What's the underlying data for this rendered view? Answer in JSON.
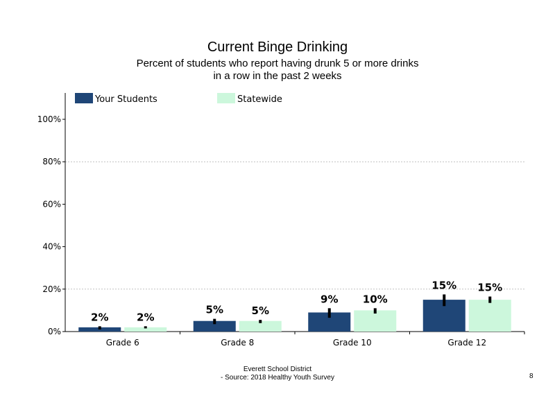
{
  "header": {
    "title": "Current  Binge Drinking",
    "subtitle_line1": "Percent of students  who report having drunk 5 or more drinks",
    "subtitle_line2": "in a row in the past 2 weeks"
  },
  "footer": {
    "line1": "Everett School District",
    "line2": "- Source: 2018 Healthy  Youth Survey",
    "page_number": "8"
  },
  "colors": {
    "your_students": "#1f4677",
    "statewide": "#ccf7dc",
    "error_bar": "#000000",
    "gridline": "#bfbfbf"
  },
  "chart_data": {
    "type": "bar",
    "title": "Current  Binge Drinking",
    "categories": [
      "Grade 6",
      "Grade 8",
      "Grade 10",
      "Grade 12"
    ],
    "series": [
      {
        "name": "Your Students",
        "values": [
          2,
          5,
          9,
          15
        ],
        "labels": [
          "2%",
          "5%",
          "9%",
          "15%"
        ],
        "error_low": [
          1,
          3.5,
          6.5,
          12
        ],
        "error_high": [
          2.5,
          6,
          11,
          17.5
        ]
      },
      {
        "name": "Statewide",
        "values": [
          2,
          5,
          10,
          15
        ],
        "labels": [
          "2%",
          "5%",
          "10%",
          "15%"
        ],
        "error_low": [
          1.5,
          4,
          8.5,
          13.5
        ],
        "error_high": [
          2.5,
          5.5,
          11,
          16.5
        ]
      }
    ],
    "ylim": [
      0,
      100
    ],
    "yticks": [
      0,
      20,
      40,
      60,
      80,
      100
    ],
    "ytick_labels": [
      "0%",
      "20%",
      "40%",
      "60%",
      "80%",
      "100%"
    ],
    "gridlines": [
      20,
      80
    ],
    "legend_placement": "top"
  }
}
